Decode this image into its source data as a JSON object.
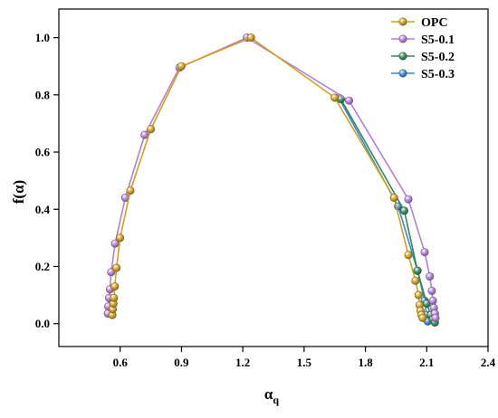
{
  "chart_data": {
    "type": "line",
    "title": "",
    "xlabel": "αq",
    "xlabel_main": "α",
    "xlabel_sub": "q",
    "ylabel": "f(α)",
    "xlim": [
      0.3,
      2.4
    ],
    "ylim": [
      -0.08,
      1.1
    ],
    "xticks": [
      0.6,
      0.9,
      1.2,
      1.5,
      1.8,
      2.1,
      2.4
    ],
    "xtick_labels": [
      "0.6",
      "0.9",
      "1.2",
      "1.5",
      "1.8",
      "2.1",
      "2.4"
    ],
    "yticks": [
      0.0,
      0.2,
      0.4,
      0.6,
      0.8,
      1.0
    ],
    "ytick_labels": [
      "0.0",
      "0.2",
      "0.4",
      "0.6",
      "0.8",
      "1.0"
    ],
    "grid": false,
    "legend": "top-right",
    "series": [
      {
        "name": "OPC",
        "color": "#d4a017",
        "points": [
          [
            0.562,
            0.03
          ],
          [
            0.564,
            0.05
          ],
          [
            0.567,
            0.07
          ],
          [
            0.57,
            0.09
          ],
          [
            0.574,
            0.13
          ],
          [
            0.582,
            0.195
          ],
          [
            0.6,
            0.3
          ],
          [
            0.65,
            0.465
          ],
          [
            0.75,
            0.68
          ],
          [
            0.9,
            0.9
          ],
          [
            1.24,
            1.0
          ],
          [
            1.65,
            0.79
          ],
          [
            1.94,
            0.44
          ],
          [
            2.01,
            0.24
          ],
          [
            2.045,
            0.15
          ],
          [
            2.06,
            0.1
          ],
          [
            2.065,
            0.065
          ],
          [
            2.07,
            0.045
          ],
          [
            2.075,
            0.03
          ],
          [
            2.08,
            0.02
          ]
        ]
      },
      {
        "name": "S5-0.1",
        "color": "#b57edc",
        "points": [
          [
            0.54,
            0.035
          ],
          [
            0.542,
            0.06
          ],
          [
            0.546,
            0.09
          ],
          [
            0.55,
            0.12
          ],
          [
            0.556,
            0.18
          ],
          [
            0.575,
            0.28
          ],
          [
            0.625,
            0.44
          ],
          [
            0.72,
            0.66
          ],
          [
            0.89,
            0.895
          ],
          [
            1.22,
            1.0
          ],
          [
            1.72,
            0.78
          ],
          [
            2.01,
            0.435
          ],
          [
            2.09,
            0.25
          ],
          [
            2.115,
            0.165
          ],
          [
            2.125,
            0.115
          ],
          [
            2.13,
            0.08
          ],
          [
            2.135,
            0.055
          ],
          [
            2.14,
            0.035
          ],
          [
            2.143,
            0.02
          ]
        ]
      },
      {
        "name": "S5-0.2",
        "color": "#2e8b57",
        "points": [
          [
            1.68,
            0.785
          ],
          [
            1.99,
            0.395
          ],
          [
            2.055,
            0.185
          ],
          [
            2.1,
            0.07
          ],
          [
            2.12,
            0.03
          ],
          [
            2.13,
            0.015
          ],
          [
            2.14,
            0.004
          ]
        ]
      },
      {
        "name": "S5-0.3",
        "color": "#3a86d4",
        "points": [
          [
            1.67,
            0.79
          ],
          [
            1.96,
            0.41
          ],
          [
            2.055,
            0.185
          ],
          [
            2.09,
            0.08
          ],
          [
            2.1,
            0.03
          ],
          [
            2.105,
            0.008
          ]
        ]
      }
    ]
  }
}
